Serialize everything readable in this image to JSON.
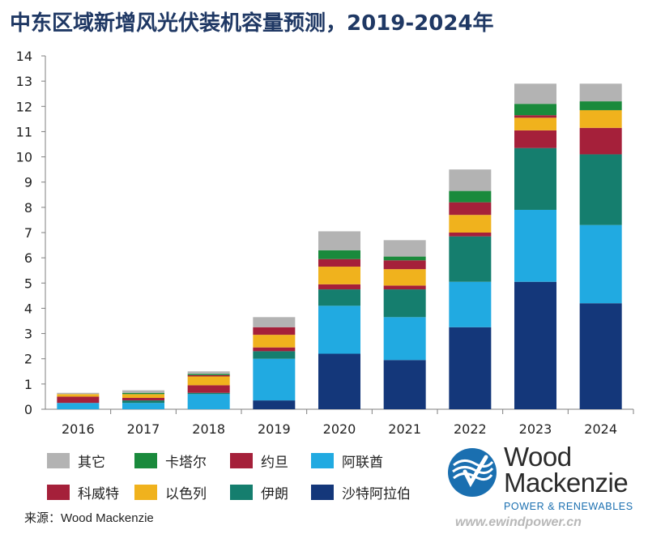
{
  "title": "中东区域新增风光伏装机容量预测，2019-2024年",
  "source": "来源：Wood Mackenzie",
  "logo": {
    "line1": "Wood",
    "line2": "Mackenzie",
    "subtitle": "POWER & RENEWABLES",
    "color": "#1a6fb0"
  },
  "watermark": "www.ewindpower.cn",
  "legend": [
    {
      "name": "其它",
      "color": "#b3b3b3"
    },
    {
      "name": "卡塔尔",
      "color": "#1a8a3c"
    },
    {
      "name": "约旦",
      "color": "#a5203a"
    },
    {
      "name": "阿联酋",
      "color": "#21aae1"
    },
    {
      "name": "科威特",
      "color": "#a5203a"
    },
    {
      "name": "以色列",
      "color": "#f0b21d"
    },
    {
      "name": "伊朗",
      "color": "#157e6e"
    },
    {
      "name": "沙特阿拉伯",
      "color": "#14377a"
    }
  ],
  "chart_data": {
    "type": "bar",
    "stacked": true,
    "categories": [
      "2016",
      "2017",
      "2018",
      "2019",
      "2020",
      "2021",
      "2022",
      "2023",
      "2024"
    ],
    "ylim": [
      0,
      14
    ],
    "yticks": [
      0,
      1,
      2,
      3,
      4,
      5,
      6,
      7,
      8,
      9,
      10,
      11,
      12,
      13,
      14
    ],
    "grid": false,
    "series": [
      {
        "name": "沙特阿拉伯",
        "color": "#14377a",
        "values": [
          0.0,
          0.0,
          0.0,
          0.35,
          2.2,
          1.95,
          3.25,
          5.05,
          4.2
        ]
      },
      {
        "name": "阿联酋",
        "color": "#21aae1",
        "values": [
          0.25,
          0.25,
          0.6,
          1.65,
          1.9,
          1.7,
          1.8,
          2.85,
          3.1
        ]
      },
      {
        "name": "伊朗",
        "color": "#157e6e",
        "values": [
          0.0,
          0.1,
          0.05,
          0.3,
          0.65,
          1.1,
          1.8,
          2.45,
          2.8
        ]
      },
      {
        "name": "约旦",
        "color": "#a5203a",
        "values": [
          0.25,
          0.1,
          0.3,
          0.15,
          0.2,
          0.15,
          0.15,
          0.7,
          1.05
        ]
      },
      {
        "name": "以色列",
        "color": "#f0b21d",
        "values": [
          0.1,
          0.15,
          0.35,
          0.5,
          0.7,
          0.65,
          0.7,
          0.5,
          0.7
        ]
      },
      {
        "name": "科威特",
        "color": "#a5203a",
        "values": [
          0.0,
          0.0,
          0.05,
          0.3,
          0.3,
          0.35,
          0.5,
          0.1,
          0.0
        ]
      },
      {
        "name": "卡塔尔",
        "color": "#1a8a3c",
        "values": [
          0.0,
          0.05,
          0.05,
          0.0,
          0.35,
          0.15,
          0.45,
          0.45,
          0.35
        ]
      },
      {
        "name": "其它",
        "color": "#b3b3b3",
        "values": [
          0.05,
          0.1,
          0.1,
          0.4,
          0.75,
          0.65,
          0.85,
          0.8,
          0.7
        ]
      }
    ]
  }
}
